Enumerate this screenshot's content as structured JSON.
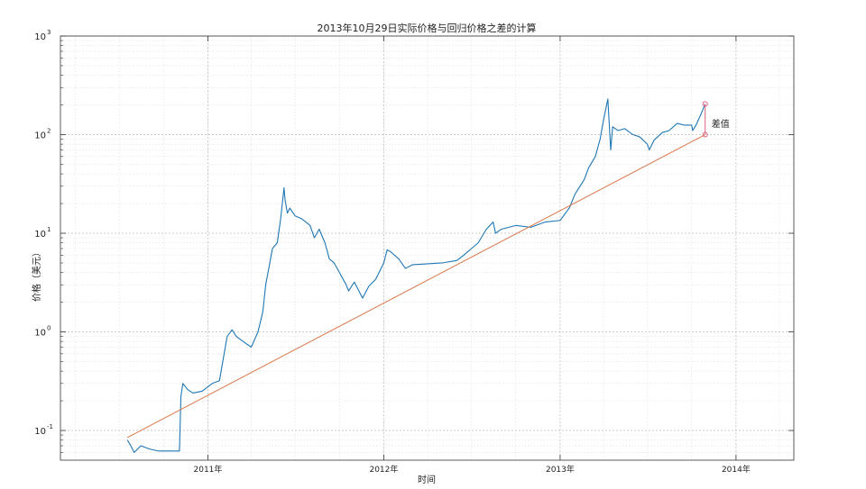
{
  "chart_data": {
    "type": "line",
    "title": "2013年10月29日实际价格与回归价格之差的计算",
    "xlabel": "时间",
    "ylabel": "价格（美元）",
    "yscale": "log",
    "ylim": [
      0.05,
      1000
    ],
    "xlim": [
      "2010-03-01",
      "2014-05-01"
    ],
    "grid": true,
    "x_ticks": [
      {
        "date": "2011-01-01",
        "label": "2011年"
      },
      {
        "date": "2012-01-01",
        "label": "2012年"
      },
      {
        "date": "2013-01-01",
        "label": "2013年"
      },
      {
        "date": "2014-01-01",
        "label": "2014年"
      }
    ],
    "y_ticks": [
      {
        "value": 0.1,
        "base": "10",
        "exp": "-1"
      },
      {
        "value": 1,
        "base": "10",
        "exp": "0"
      },
      {
        "value": 10,
        "base": "10",
        "exp": "1"
      },
      {
        "value": 100,
        "base": "10",
        "exp": "2"
      },
      {
        "value": 1000,
        "base": "10",
        "exp": "3"
      }
    ],
    "colors": {
      "price": "#1f77b4",
      "regression": "#d9774a",
      "marker": "#e06080",
      "grid": "#d8d8d8"
    },
    "series": [
      {
        "role": "price",
        "x": [
          "2010-07-18",
          "2010-07-25",
          "2010-08-01",
          "2010-08-15",
          "2010-09-01",
          "2010-09-20",
          "2010-10-10",
          "2010-10-25",
          "2010-11-03",
          "2010-11-06",
          "2010-11-10",
          "2010-11-20",
          "2010-12-01",
          "2010-12-20",
          "2011-01-10",
          "2011-01-25",
          "2011-02-10",
          "2011-02-20",
          "2011-03-01",
          "2011-03-15",
          "2011-04-01",
          "2011-04-15",
          "2011-04-25",
          "2011-05-01",
          "2011-05-15",
          "2011-05-25",
          "2011-06-01",
          "2011-06-08",
          "2011-06-10",
          "2011-06-15",
          "2011-06-20",
          "2011-07-01",
          "2011-07-15",
          "2011-08-01",
          "2011-08-10",
          "2011-08-20",
          "2011-09-01",
          "2011-09-10",
          "2011-09-20",
          "2011-10-01",
          "2011-10-15",
          "2011-10-20",
          "2011-11-01",
          "2011-11-18",
          "2011-12-01",
          "2011-12-15",
          "2012-01-01",
          "2012-01-08",
          "2012-01-15",
          "2012-02-01",
          "2012-02-15",
          "2012-03-01",
          "2012-04-01",
          "2012-05-01",
          "2012-06-01",
          "2012-06-15",
          "2012-07-01",
          "2012-07-15",
          "2012-08-01",
          "2012-08-15",
          "2012-08-20",
          "2012-09-01",
          "2012-10-01",
          "2012-11-01",
          "2012-12-01",
          "2013-01-01",
          "2013-01-20",
          "2013-02-01",
          "2013-02-20",
          "2013-03-01",
          "2013-03-15",
          "2013-03-25",
          "2013-04-01",
          "2013-04-10",
          "2013-04-16",
          "2013-04-20",
          "2013-05-01",
          "2013-05-15",
          "2013-06-01",
          "2013-06-15",
          "2013-07-01",
          "2013-07-05",
          "2013-07-15",
          "2013-08-01",
          "2013-08-15",
          "2013-09-01",
          "2013-09-15",
          "2013-10-01",
          "2013-10-03",
          "2013-10-10",
          "2013-10-20",
          "2013-10-29"
        ],
        "y": [
          0.08,
          0.07,
          0.06,
          0.07,
          0.065,
          0.062,
          0.062,
          0.062,
          0.062,
          0.22,
          0.3,
          0.26,
          0.24,
          0.25,
          0.3,
          0.32,
          0.9,
          1.05,
          0.9,
          0.8,
          0.7,
          1.0,
          1.6,
          3.0,
          7.0,
          8.0,
          14.0,
          29.0,
          22.0,
          16.0,
          18.0,
          15.0,
          14.0,
          12.0,
          9.0,
          11.0,
          8.0,
          5.5,
          5.0,
          4.0,
          3.0,
          2.6,
          3.2,
          2.2,
          2.9,
          3.4,
          5.0,
          6.8,
          6.5,
          5.5,
          4.4,
          4.8,
          4.9,
          5.0,
          5.3,
          6.0,
          7.0,
          8.0,
          11.0,
          13.0,
          10.0,
          11.0,
          12.0,
          11.5,
          13.0,
          13.5,
          18.0,
          25.0,
          35.0,
          46.0,
          60.0,
          90.0,
          140.0,
          230.0,
          70.0,
          120.0,
          110.0,
          115.0,
          100.0,
          95.0,
          80.0,
          70.0,
          88.0,
          105.0,
          110.0,
          130.0,
          125.0,
          125.0,
          110.0,
          125.0,
          160.0,
          205.0
        ]
      },
      {
        "role": "regression",
        "x": [
          "2010-07-18",
          "2013-10-29"
        ],
        "y": [
          0.085,
          100
        ]
      }
    ],
    "annotations": [
      {
        "text": "差值",
        "x": "2013-10-29",
        "y": 120
      }
    ]
  }
}
